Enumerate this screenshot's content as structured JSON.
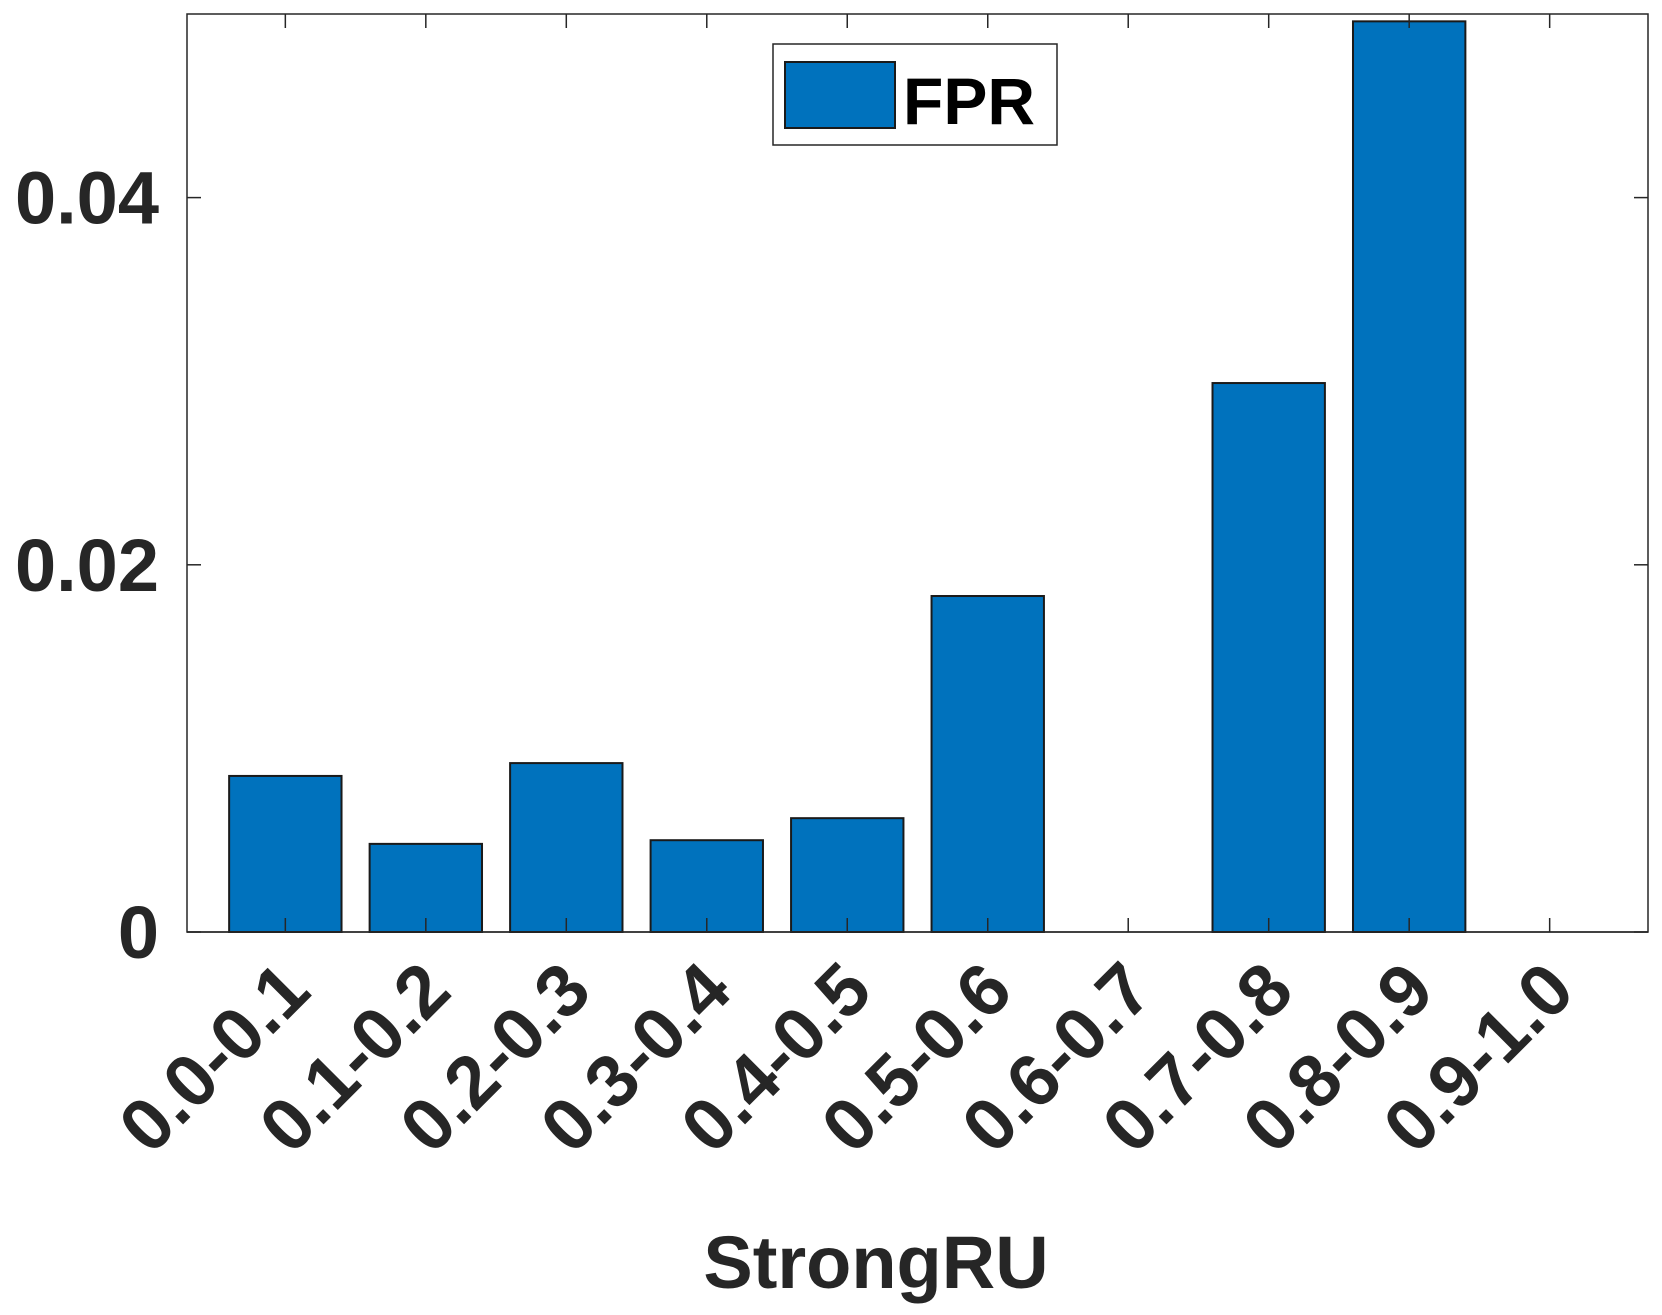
{
  "chart_data": {
    "type": "bar",
    "categories": [
      "0.0-0.1",
      "0.1-0.2",
      "0.2-0.3",
      "0.3-0.4",
      "0.4-0.5",
      "0.5-0.6",
      "0.6-0.7",
      "0.7-0.8",
      "0.8-0.9",
      "0.9-1.0"
    ],
    "series": [
      {
        "name": "FPR",
        "values": [
          0.0085,
          0.0048,
          0.0092,
          0.005,
          0.0062,
          0.0183,
          0.0,
          0.0299,
          0.0496,
          0.0
        ]
      }
    ],
    "title": "",
    "xlabel": "StrongRU",
    "ylabel": "",
    "ylim": [
      0,
      0.05
    ],
    "yticks": [
      0,
      0.02,
      0.04
    ],
    "ytick_labels": [
      "0",
      "0.02",
      "0.04"
    ],
    "grid": false,
    "legend_position": "top-center",
    "colors": {
      "bar": "#0072BD",
      "axis": "#262626"
    }
  }
}
